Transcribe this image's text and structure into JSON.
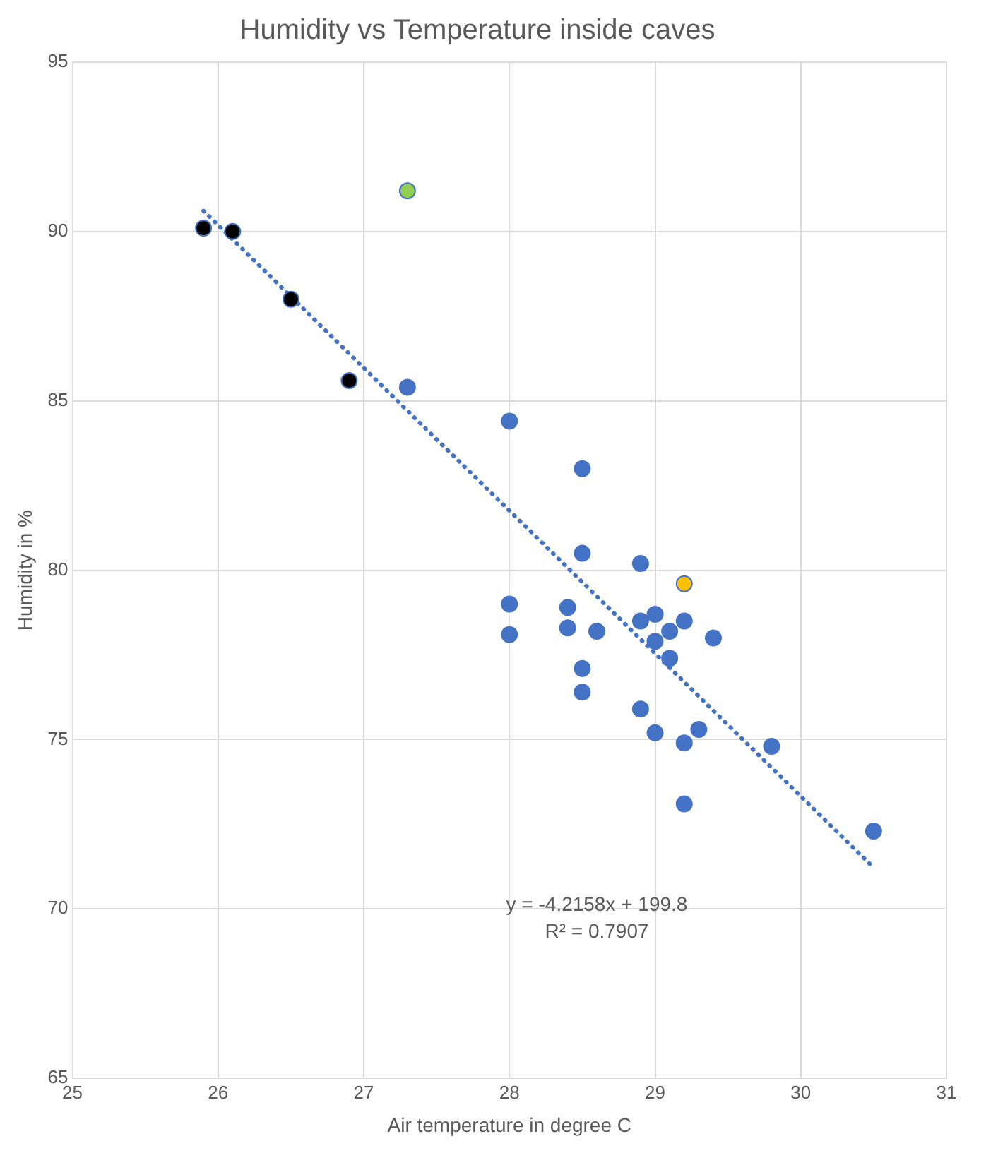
{
  "chart_data": {
    "type": "scatter",
    "title": "Humidity vs Temperature inside caves",
    "xlabel": "Air temperature in degree C",
    "ylabel": "Humidity in %",
    "xlim": [
      25,
      31
    ],
    "xticks": [
      25,
      26,
      27,
      28,
      29,
      30,
      31
    ],
    "ylim": [
      65,
      95
    ],
    "yticks": [
      65,
      70,
      75,
      80,
      85,
      90,
      95
    ],
    "grid": true,
    "legend": false,
    "marker": "circle",
    "annotations": [
      "y = -4.2158x + 199.8",
      "R² = 0.7907"
    ],
    "series": [
      {
        "color": "#4472c4",
        "x": [
          25.9,
          26.1,
          26.5,
          26.9,
          27.3,
          27.3,
          28.0,
          28.5,
          28.5,
          28.9,
          29.2,
          28.0,
          28.0,
          28.4,
          28.4,
          28.6,
          28.9,
          29.0,
          29.2,
          29.1,
          29.0,
          29.4,
          29.1,
          28.5,
          28.5,
          28.9,
          29.3,
          29.0,
          29.2,
          29.8,
          29.2,
          30.5
        ],
        "values": [
          90.1,
          90.0,
          88.0,
          85.6,
          91.2,
          85.4,
          84.4,
          83.0,
          80.5,
          80.2,
          79.6,
          79.0,
          78.1,
          78.9,
          78.3,
          78.2,
          78.5,
          78.7,
          78.5,
          78.2,
          77.9,
          78.0,
          77.4,
          77.1,
          76.4,
          75.9,
          75.3,
          75.2,
          74.9,
          74.8,
          73.1,
          72.3
        ],
        "colors": [
          "#000000",
          "#000000",
          "#000000",
          "#000000",
          "#92d050",
          "#4472c4",
          "#4472c4",
          "#4472c4",
          "#4472c4",
          "#4472c4",
          "#ffc000",
          "#4472c4",
          "#4472c4",
          "#4472c4",
          "#4472c4",
          "#4472c4",
          "#4472c4",
          "#4472c4",
          "#4472c4",
          "#4472c4",
          "#4472c4",
          "#4472c4",
          "#4472c4",
          "#4472c4",
          "#4472c4",
          "#4472c4",
          "#4472c4",
          "#4472c4",
          "#4472c4",
          "#4472c4",
          "#4472c4",
          "#4472c4"
        ]
      },
      {
        "type": "line",
        "color": "#4472c4",
        "line_style": "dotted",
        "marker": "none",
        "x": [
          25.9,
          30.5
        ],
        "values": [
          90.61,
          71.22
        ]
      }
    ]
  }
}
